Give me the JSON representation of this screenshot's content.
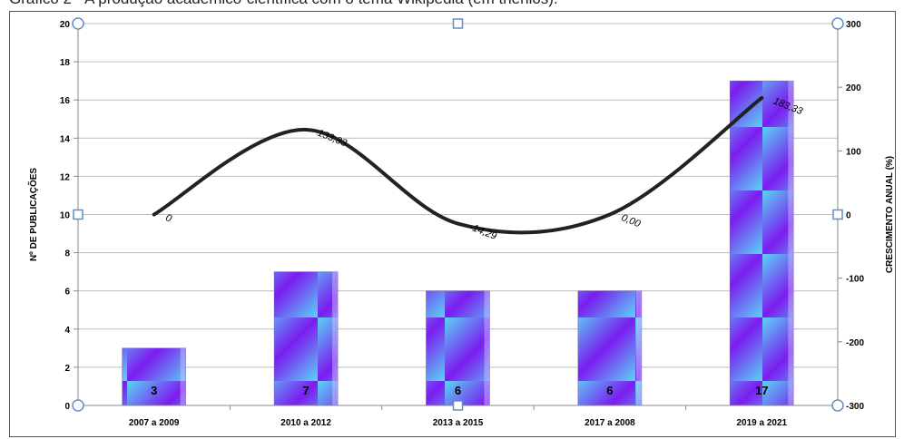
{
  "caption": "Gráfico 2 - A produção acadêmico-científica com o tema Wikipédia (em triênios).",
  "chart_data": {
    "type": "bar",
    "categories": [
      "2007 a 2009",
      "2010 a 2012",
      "2013 a 2015",
      "2017 a 2008",
      "2019 a 2021"
    ],
    "series": [
      {
        "values": [
          3,
          7,
          6,
          6,
          17
        ],
        "axis": "left",
        "type": "bar"
      },
      {
        "values": [
          0,
          133.33,
          -14.29,
          0.0,
          183.33
        ],
        "axis": "right",
        "type": "line"
      }
    ],
    "bar_labels": [
      "3",
      "7",
      "6",
      "6",
      "17"
    ],
    "line_labels": [
      "0",
      "133,33",
      "-14,29",
      "0,00",
      "183,33"
    ],
    "ylabel": "Nº DE PUBLICAÇÕES",
    "y2label": "CRESCIMENTO ANUAL (%)",
    "ylim": [
      0,
      20
    ],
    "y2lim": [
      -300,
      300
    ],
    "yticks": [
      0,
      2,
      4,
      6,
      8,
      10,
      12,
      14,
      16,
      18,
      20
    ],
    "y2ticks": [
      -300,
      -200,
      -100,
      0,
      100,
      200,
      300
    ],
    "grid": true,
    "colors": {
      "bar_a": "#7b1cf0",
      "bar_b": "#5ad4f5",
      "line": "#222222",
      "grid": "#bcbcbc"
    }
  }
}
